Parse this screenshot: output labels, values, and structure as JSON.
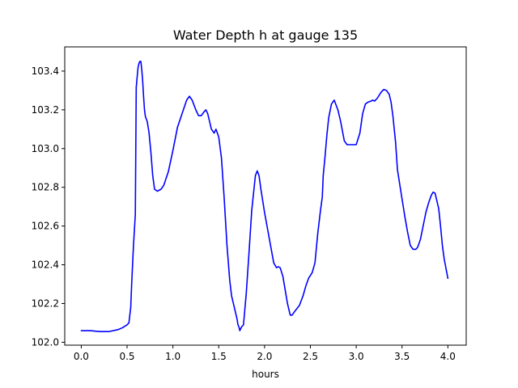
{
  "chart_data": {
    "type": "line",
    "title": "Water Depth h at gauge 135",
    "xlabel": "hours",
    "ylabel": "",
    "xlim": [
      -0.18,
      4.2
    ],
    "ylim": [
      101.985,
      103.525
    ],
    "xticks": [
      0.0,
      0.5,
      1.0,
      1.5,
      2.0,
      2.5,
      3.0,
      3.5,
      4.0
    ],
    "xtick_labels": [
      "0.0",
      "0.5",
      "1.0",
      "1.5",
      "2.0",
      "2.5",
      "3.0",
      "3.5",
      "4.0"
    ],
    "yticks": [
      102.0,
      102.2,
      102.4,
      102.6,
      102.8,
      103.0,
      103.2,
      103.4
    ],
    "ytick_labels": [
      "102.0",
      "102.2",
      "102.4",
      "102.6",
      "102.8",
      "103.0",
      "103.2",
      "103.4"
    ],
    "grid": false,
    "series": [
      {
        "color": "#0000ff",
        "x": [
          0.0,
          0.1,
          0.2,
          0.3,
          0.4,
          0.45,
          0.5,
          0.52,
          0.54,
          0.55,
          0.57,
          0.59,
          0.6,
          0.601,
          0.61,
          0.62,
          0.63,
          0.64,
          0.65,
          0.66,
          0.67,
          0.68,
          0.69,
          0.7,
          0.72,
          0.74,
          0.76,
          0.78,
          0.8,
          0.83,
          0.87,
          0.9,
          0.95,
          1.0,
          1.05,
          1.1,
          1.15,
          1.18,
          1.21,
          1.25,
          1.28,
          1.31,
          1.34,
          1.36,
          1.38,
          1.4,
          1.42,
          1.45,
          1.47,
          1.5,
          1.53,
          1.56,
          1.59,
          1.62,
          1.64,
          1.66,
          1.68,
          1.7,
          1.71,
          1.72,
          1.73,
          1.75,
          1.77,
          1.8,
          1.83,
          1.86,
          1.9,
          1.92,
          1.94,
          1.96,
          1.98,
          2.0,
          2.05,
          2.1,
          2.13,
          2.15,
          2.17,
          2.2,
          2.25,
          2.28,
          2.3,
          2.33,
          2.38,
          2.42,
          2.45,
          2.48,
          2.52,
          2.55,
          2.58,
          2.61,
          2.63,
          2.64,
          2.66,
          2.68,
          2.7,
          2.73,
          2.76,
          2.8,
          2.83,
          2.85,
          2.87,
          2.9,
          2.95,
          3.0,
          3.04,
          3.07,
          3.1,
          3.13,
          3.16,
          3.18,
          3.2,
          3.23,
          3.27,
          3.3,
          3.33,
          3.36,
          3.38,
          3.4,
          3.43,
          3.45,
          3.48,
          3.5,
          3.53,
          3.56,
          3.59,
          3.62,
          3.65,
          3.67,
          3.7,
          3.73,
          3.76,
          3.79,
          3.82,
          3.84,
          3.86,
          3.88,
          3.9,
          3.92,
          3.94,
          3.96,
          3.98,
          4.0
        ],
        "values": [
          102.06,
          102.06,
          102.055,
          102.055,
          102.065,
          102.075,
          102.09,
          102.1,
          102.18,
          102.3,
          102.5,
          102.66,
          103.32,
          103.32,
          103.37,
          103.42,
          103.44,
          103.45,
          103.45,
          103.41,
          103.35,
          103.27,
          103.2,
          103.165,
          103.14,
          103.08,
          102.98,
          102.86,
          102.79,
          102.78,
          102.79,
          102.81,
          102.88,
          102.99,
          103.11,
          103.18,
          103.25,
          103.27,
          103.25,
          103.2,
          103.17,
          103.17,
          103.19,
          103.2,
          103.18,
          103.14,
          103.1,
          103.08,
          103.1,
          103.06,
          102.95,
          102.74,
          102.5,
          102.32,
          102.24,
          102.2,
          102.16,
          102.12,
          102.09,
          102.08,
          102.06,
          102.08,
          102.09,
          102.25,
          102.46,
          102.68,
          102.86,
          102.885,
          102.86,
          102.79,
          102.73,
          102.67,
          102.54,
          102.41,
          102.385,
          102.39,
          102.385,
          102.34,
          102.2,
          102.14,
          102.14,
          102.16,
          102.19,
          102.24,
          102.29,
          102.33,
          102.36,
          102.41,
          102.56,
          102.68,
          102.75,
          102.86,
          102.96,
          103.07,
          103.16,
          103.23,
          103.25,
          103.2,
          103.14,
          103.09,
          103.04,
          103.02,
          103.02,
          103.02,
          103.08,
          103.18,
          103.23,
          103.24,
          103.245,
          103.25,
          103.245,
          103.26,
          103.29,
          103.305,
          103.3,
          103.28,
          103.24,
          103.17,
          103.03,
          102.89,
          102.8,
          102.74,
          102.65,
          102.57,
          102.5,
          102.48,
          102.48,
          102.49,
          102.53,
          102.6,
          102.67,
          102.72,
          102.76,
          102.775,
          102.77,
          102.73,
          102.69,
          102.6,
          102.5,
          102.43,
          102.38,
          102.33
        ]
      }
    ]
  }
}
